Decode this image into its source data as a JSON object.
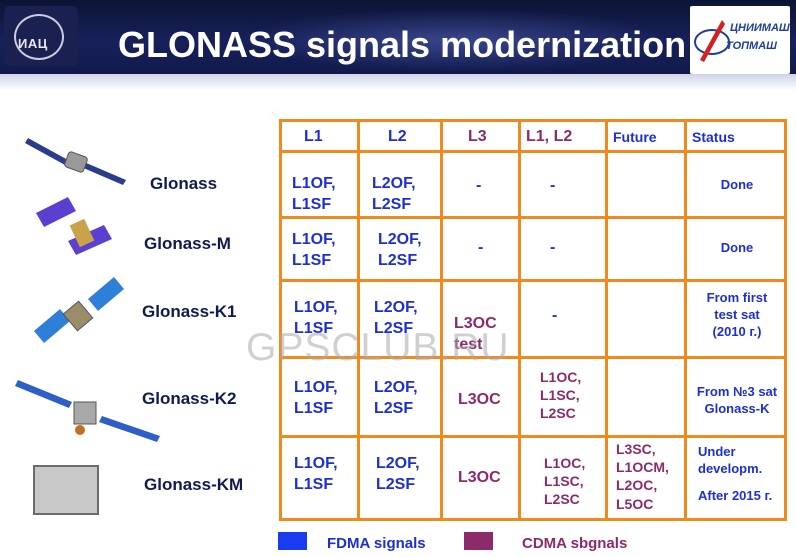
{
  "header": {
    "logo_left_text": "ИАЦ",
    "title": "GLONASS signals modernization",
    "logo_right_line1": "ЦНИИМАШ",
    "logo_right_line2": "ТОПМАШ"
  },
  "satellites": [
    {
      "name": "Glonass"
    },
    {
      "name": "Glonass-M"
    },
    {
      "name": "Glonass-K1"
    },
    {
      "name": "Glonass-K2"
    },
    {
      "name": "Glonass-KM"
    }
  ],
  "table": {
    "headers": [
      "L1",
      "L2",
      "L3",
      "L1, L2",
      "Future",
      "Status"
    ],
    "rows": [
      {
        "l1": [
          "L1OF,",
          "L1SF"
        ],
        "l2": [
          "L2OF,",
          "L2SF"
        ],
        "l3": [
          "-"
        ],
        "l1l2": [
          "-"
        ],
        "future": [],
        "status": [
          "Done"
        ]
      },
      {
        "l1": [
          "L1OF,",
          "L1SF"
        ],
        "l2": [
          "L2OF,",
          "L2SF"
        ],
        "l3": [
          "-"
        ],
        "l1l2": [
          "-"
        ],
        "future": [],
        "status": [
          "Done"
        ]
      },
      {
        "l1": [
          "L1OF,",
          "L1SF"
        ],
        "l2": [
          "L2OF,",
          "L2SF"
        ],
        "l3": [
          "L3OC",
          "test"
        ],
        "l1l2": [
          "-"
        ],
        "future": [],
        "status": [
          "From first",
          "test sat",
          "(2010 г.)"
        ]
      },
      {
        "l1": [
          "L1OF,",
          "L1SF"
        ],
        "l2": [
          "L2OF,",
          "L2SF"
        ],
        "l3": [
          "L3OC"
        ],
        "l1l2": [
          "L1OC,",
          "L1SC,",
          "L2SC"
        ],
        "future": [],
        "status": [
          "From №3 sat",
          "Glonass-K"
        ]
      },
      {
        "l1": [
          "L1OF,",
          "L1SF"
        ],
        "l2": [
          "L2OF,",
          "L2SF"
        ],
        "l3": [
          "L3OC"
        ],
        "l1l2": [
          "L1OC,",
          "L1SC,",
          "L2SC"
        ],
        "future": [
          "L3SC,",
          "L1OCM,",
          "L2OC,",
          "L5OC"
        ],
        "status": [
          "Under",
          "developm.",
          "",
          "After 2015 г."
        ]
      }
    ]
  },
  "watermark": "GPSCLUB.RU",
  "legend": [
    {
      "label": "FDMA signals",
      "color": "#1a3cf0"
    },
    {
      "label": "CDMA sbgnals",
      "color": "#8d2a6a"
    }
  ],
  "colors": {
    "grid": "#f08a1c",
    "fdma_text": "#1c2fd6",
    "cdma_text": "#8d2a6a",
    "header_bg": "#121a4c"
  }
}
